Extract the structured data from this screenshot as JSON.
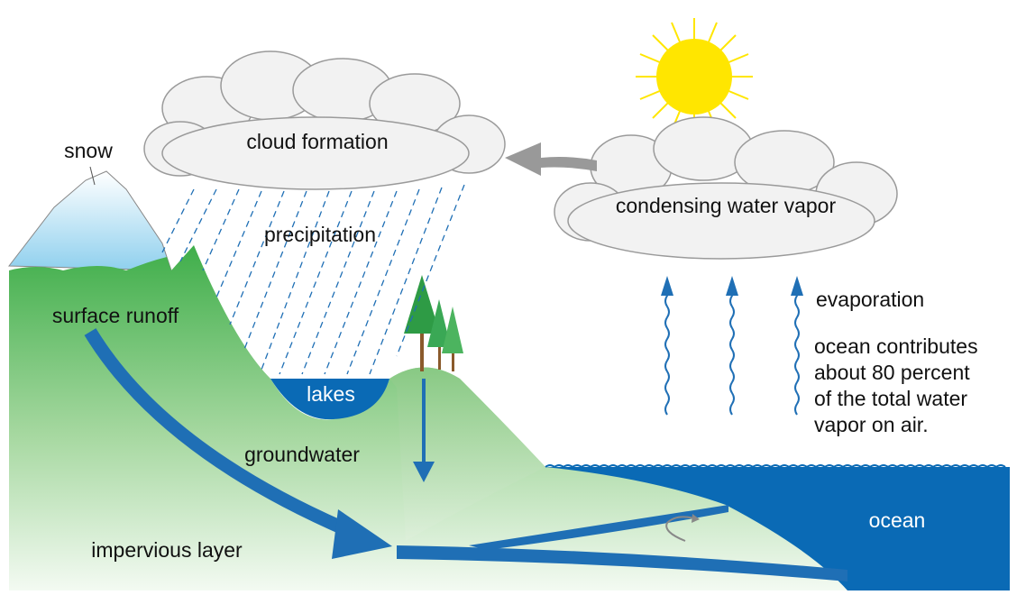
{
  "diagram": {
    "labels": {
      "snow": "snow",
      "cloud_formation": "cloud formation",
      "precipitation": "precipitation",
      "condensing": "condensing water vapor",
      "evaporation": "evaporation",
      "surface_runoff": "surface runoff",
      "lakes": "lakes",
      "groundwater": "groundwater",
      "ocean": "ocean",
      "impervious_layer": "impervious layer"
    },
    "note": [
      "ocean contributes",
      "about 80 percent",
      "of the total water",
      "vapor on air."
    ]
  }
}
